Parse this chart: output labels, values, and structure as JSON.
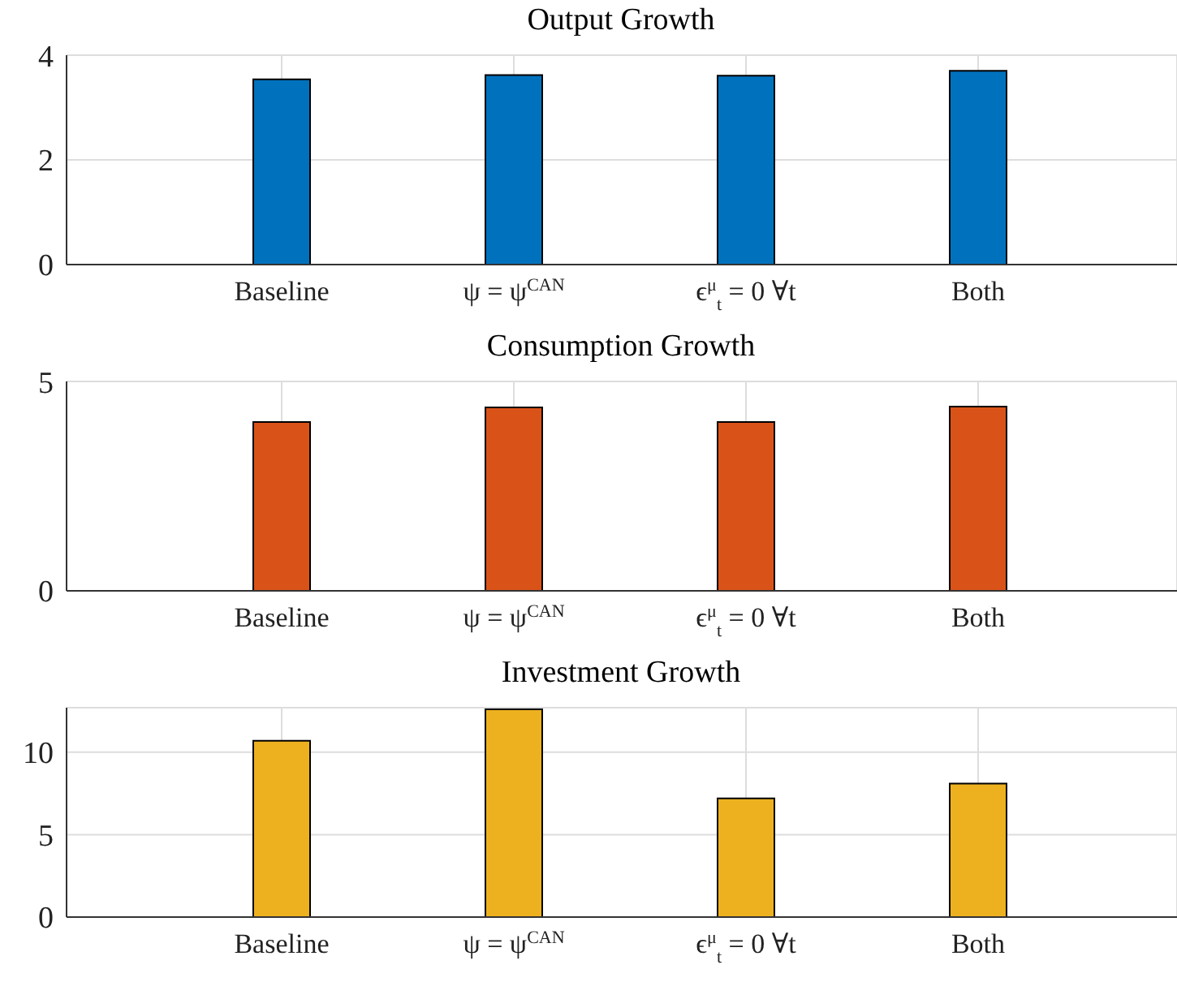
{
  "chart_data": [
    {
      "type": "bar",
      "title": "Output Growth",
      "categories": [
        "Baseline",
        "ψ = ψ$^{CAN}$",
        "ϵ$^{μ}$$_{t}$ = 0 ∀t",
        "Both"
      ],
      "values": [
        3.54,
        3.62,
        3.61,
        3.7
      ],
      "color": "#0072bd",
      "ylim": [
        0,
        4
      ],
      "yticks": [
        0,
        2,
        4
      ],
      "grid": true
    },
    {
      "type": "bar",
      "title": "Consumption Growth",
      "categories": [
        "Baseline",
        "ψ = ψ$^{CAN}$",
        "ϵ$^{μ}$$_{t}$ = 0 ∀t",
        "Both"
      ],
      "values": [
        4.03,
        4.38,
        4.03,
        4.4
      ],
      "color": "#d95319",
      "ylim": [
        0,
        5
      ],
      "yticks": [
        0,
        5
      ],
      "grid": true
    },
    {
      "type": "bar",
      "title": "Investment Growth",
      "categories": [
        "Baseline",
        "ψ = ψ$^{CAN}$",
        "ϵ$^{μ}$$_{t}$ = 0 ∀t",
        "Both"
      ],
      "values": [
        10.7,
        12.6,
        7.2,
        8.1
      ],
      "color": "#edb120",
      "ylim": [
        0,
        12.7
      ],
      "yticks": [
        0,
        5,
        10
      ],
      "grid": true
    }
  ]
}
